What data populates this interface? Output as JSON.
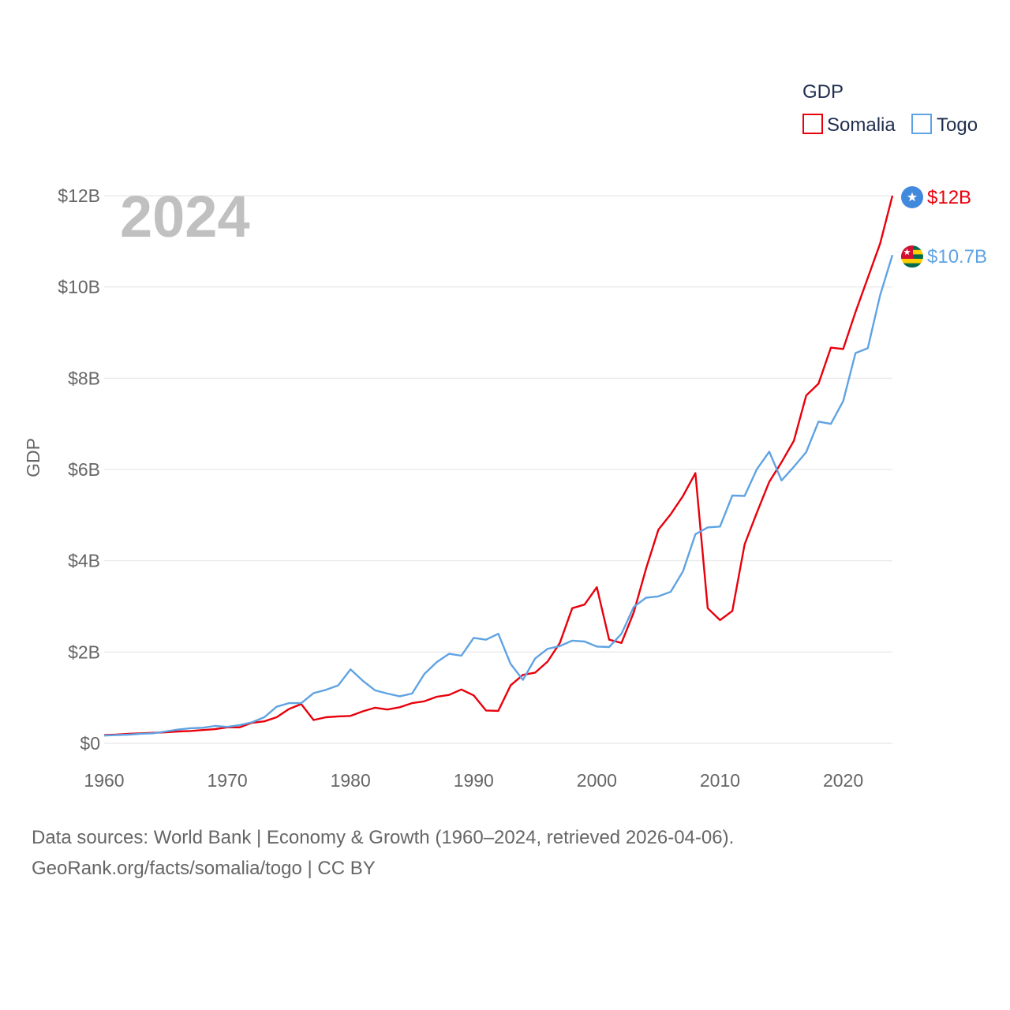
{
  "chart_data": {
    "type": "line",
    "title": "",
    "year_label": "2024",
    "ylabel": "GDP",
    "xlabel": "",
    "xlim": [
      1960,
      2024
    ],
    "ylim": [
      0,
      12
    ],
    "y_unit": "billion USD",
    "x_ticks": [
      {
        "value": 1960,
        "label": "1960"
      },
      {
        "value": 1970,
        "label": "1970"
      },
      {
        "value": 1980,
        "label": "1980"
      },
      {
        "value": 1990,
        "label": "1990"
      },
      {
        "value": 2000,
        "label": "2000"
      },
      {
        "value": 2010,
        "label": "2010"
      },
      {
        "value": 2020,
        "label": "2020"
      }
    ],
    "y_ticks": [
      {
        "value": 0,
        "label": "$0"
      },
      {
        "value": 2,
        "label": "$2B"
      },
      {
        "value": 4,
        "label": "$4B"
      },
      {
        "value": 6,
        "label": "$6B"
      },
      {
        "value": 8,
        "label": "$8B"
      },
      {
        "value": 10,
        "label": "$10B"
      },
      {
        "value": 12,
        "label": "$12B"
      }
    ],
    "grid": true,
    "legend": {
      "title": "GDP",
      "placement": "top-right"
    },
    "x": [
      1960,
      1961,
      1962,
      1963,
      1964,
      1965,
      1966,
      1967,
      1968,
      1969,
      1970,
      1971,
      1972,
      1973,
      1974,
      1975,
      1976,
      1977,
      1978,
      1979,
      1980,
      1981,
      1982,
      1983,
      1984,
      1985,
      1986,
      1987,
      1988,
      1989,
      1990,
      1991,
      1992,
      1993,
      1994,
      1995,
      1996,
      1997,
      1998,
      1999,
      2000,
      2001,
      2002,
      2003,
      2004,
      2005,
      2006,
      2007,
      2008,
      2009,
      2010,
      2011,
      2012,
      2013,
      2014,
      2015,
      2016,
      2017,
      2018,
      2019,
      2020,
      2021,
      2022,
      2023,
      2024
    ],
    "series": [
      {
        "name": "Somalia",
        "color": "#e8000b",
        "end_label": "$12B",
        "flag": "somalia-flag",
        "values": [
          0.18,
          0.19,
          0.21,
          0.22,
          0.23,
          0.24,
          0.26,
          0.27,
          0.29,
          0.31,
          0.35,
          0.35,
          0.45,
          0.48,
          0.57,
          0.75,
          0.86,
          0.51,
          0.57,
          0.59,
          0.6,
          0.7,
          0.78,
          0.74,
          0.79,
          0.88,
          0.92,
          1.02,
          1.06,
          1.18,
          1.05,
          0.72,
          0.71,
          1.27,
          1.5,
          1.55,
          1.79,
          2.2,
          2.96,
          3.04,
          3.42,
          2.27,
          2.2,
          2.87,
          3.83,
          4.68,
          5.02,
          5.42,
          5.92,
          2.96,
          2.7,
          2.9,
          4.36,
          5.06,
          5.73,
          6.16,
          6.63,
          7.62,
          7.88,
          8.67,
          8.64,
          9.45,
          10.2,
          10.95,
          12.0
        ]
      },
      {
        "name": "Togo",
        "color": "#5fa3e3",
        "end_label": "$10.7B",
        "flag": "togo-flag",
        "values": [
          0.17,
          0.18,
          0.19,
          0.21,
          0.22,
          0.26,
          0.3,
          0.33,
          0.34,
          0.38,
          0.36,
          0.4,
          0.46,
          0.57,
          0.8,
          0.88,
          0.88,
          1.1,
          1.17,
          1.27,
          1.62,
          1.37,
          1.16,
          1.09,
          1.03,
          1.09,
          1.52,
          1.78,
          1.96,
          1.92,
          2.31,
          2.27,
          2.4,
          1.74,
          1.39,
          1.86,
          2.07,
          2.13,
          2.25,
          2.23,
          2.12,
          2.11,
          2.4,
          2.99,
          3.19,
          3.22,
          3.32,
          3.77,
          4.58,
          4.73,
          4.75,
          5.43,
          5.42,
          6.01,
          6.39,
          5.76,
          6.06,
          6.38,
          7.05,
          7.0,
          7.5,
          8.55,
          8.66,
          9.82,
          10.7
        ]
      }
    ]
  },
  "footer": {
    "line1": "Data sources: World Bank | Economy & Growth (1960–2024, retrieved 2026-04-06).",
    "line2": "GeoRank.org/facts/somalia/togo | CC BY"
  }
}
